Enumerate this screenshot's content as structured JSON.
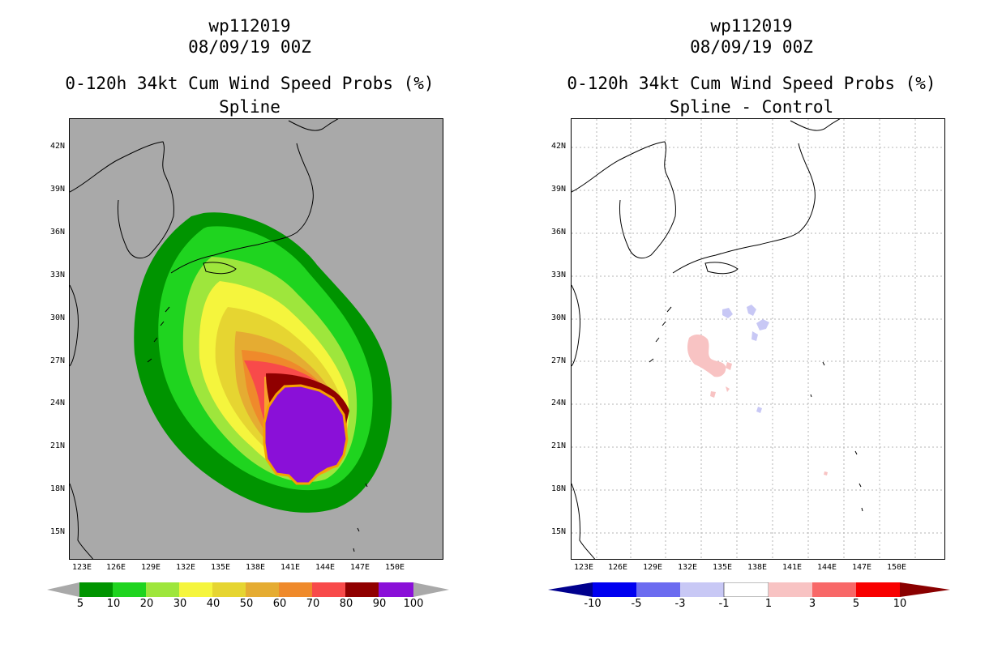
{
  "left": {
    "storm": "wp112019",
    "date": "08/09/19 00Z",
    "product": "0-120h 34kt Cum Wind Speed Probs (%)",
    "subtitle": "Spline",
    "background": "#a9a9a9",
    "colorbar": {
      "levels": [
        "5",
        "10",
        "20",
        "30",
        "40",
        "50",
        "60",
        "70",
        "80",
        "90",
        "100"
      ],
      "colors": [
        "#009400",
        "#1fd41f",
        "#9ee63c",
        "#f5f53d",
        "#e6d531",
        "#e5ac32",
        "#ef8a2b",
        "#f84a4a",
        "#900000",
        "#8a10d8"
      ]
    }
  },
  "right": {
    "storm": "wp112019",
    "date": "08/09/19 00Z",
    "product": "0-120h 34kt Cum Wind Speed Probs (%)",
    "subtitle": "Spline - Control",
    "background": "#ffffff",
    "colorbar": {
      "levels": [
        "-10",
        "-5",
        "-3",
        "-1",
        "1",
        "3",
        "5",
        "10"
      ],
      "colors": [
        "#00008e",
        "#0000f0",
        "#6b6bf0",
        "#c8c8f5",
        "#ffffff",
        "#f8c3c3",
        "#f86868",
        "#f80000",
        "#8a0000"
      ]
    }
  },
  "axes": {
    "lat_labels": [
      "42N",
      "39N",
      "36N",
      "33N",
      "30N",
      "27N",
      "24N",
      "21N",
      "18N",
      "15N"
    ],
    "lon_labels": [
      "123E",
      "126E",
      "129E",
      "132E",
      "135E",
      "138E",
      "141E",
      "144E",
      "147E",
      "150E"
    ]
  }
}
